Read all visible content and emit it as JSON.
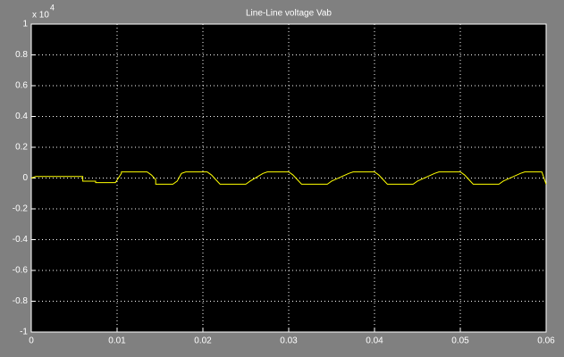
{
  "chart_data": {
    "type": "line",
    "title": "Line-Line voltage Vab",
    "y_exponent_label": "x 10",
    "y_exponent": "4",
    "xlim": [
      0,
      0.06
    ],
    "xticks": [
      0,
      0.01,
      0.02,
      0.03,
      0.04,
      0.05,
      0.06
    ],
    "ylim": [
      -1,
      1
    ],
    "yticks": [
      -1,
      -0.8,
      -0.6,
      -0.4,
      -0.2,
      0,
      0.2,
      0.4,
      0.6,
      0.8,
      1
    ],
    "grid": true,
    "x": [
      0,
      0.0005,
      0.006,
      0.006,
      0.0075,
      0.0075,
      0.0098,
      0.0105,
      0.0105,
      0.0135,
      0.014,
      0.0145,
      0.0145,
      0.0165,
      0.017,
      0.0175,
      0.018,
      0.0205,
      0.021,
      0.0215,
      0.022,
      0.025,
      0.0255,
      0.027,
      0.0275,
      0.03,
      0.0305,
      0.031,
      0.0315,
      0.0345,
      0.035,
      0.037,
      0.0375,
      0.04,
      0.0405,
      0.041,
      0.0415,
      0.0445,
      0.045,
      0.047,
      0.0475,
      0.05,
      0.0505,
      0.051,
      0.0515,
      0.0545,
      0.055,
      0.057,
      0.0575,
      0.0595,
      0.06
    ],
    "series": [
      {
        "color": "#ffff00",
        "values": [
          0,
          0.01,
          0.01,
          -0.02,
          -0.02,
          -0.03,
          -0.03,
          0.03,
          0.04,
          0.04,
          0.02,
          -0.01,
          -0.04,
          -0.04,
          -0.02,
          0.03,
          0.04,
          0.04,
          0.02,
          -0.01,
          -0.04,
          -0.04,
          -0.02,
          0.03,
          0.04,
          0.04,
          0.02,
          -0.01,
          -0.04,
          -0.04,
          -0.02,
          0.03,
          0.04,
          0.04,
          0.02,
          -0.01,
          -0.04,
          -0.04,
          -0.02,
          0.03,
          0.04,
          0.04,
          0.02,
          -0.01,
          -0.04,
          -0.04,
          -0.02,
          0.03,
          0.04,
          0.04,
          -0.04
        ]
      }
    ]
  }
}
